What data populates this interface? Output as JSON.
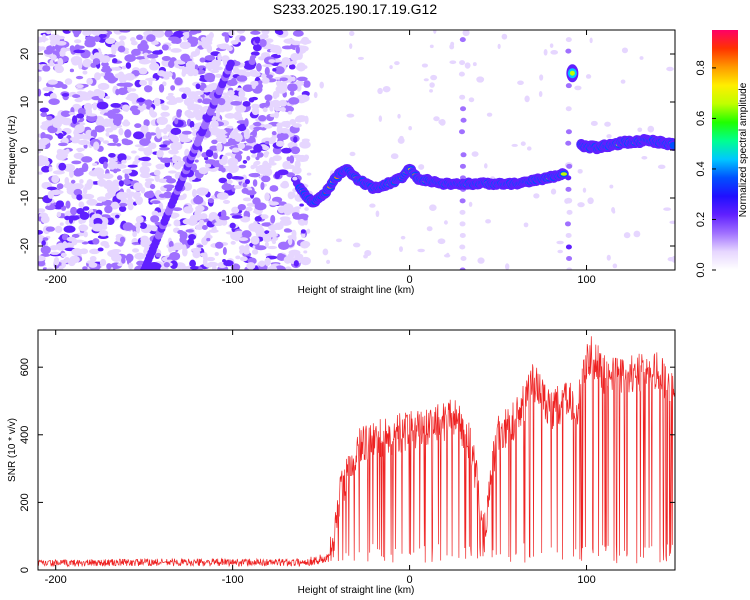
{
  "title": "S233.2025.190.17.19.G12",
  "chart_data": [
    {
      "type": "heatmap",
      "xlabel": "Height of straight line (km)",
      "ylabel": "Frequency (Hz)",
      "xlim": [
        -210,
        150
      ],
      "ylim": [
        -25,
        25
      ],
      "xticks": [
        -200,
        -100,
        0,
        100
      ],
      "yticks": [
        -20,
        -10,
        0,
        10,
        20
      ],
      "colorbar": {
        "label": "Normalized spectral amplitude",
        "range": [
          0.0,
          0.95
        ],
        "ticks": [
          0.0,
          0.2,
          0.4,
          0.6,
          0.8
        ],
        "colormap": [
          "#ffffff",
          "#e6d6ff",
          "#a070ff",
          "#6020ff",
          "#2010ff",
          "#0050ff",
          "#00c8ff",
          "#00ff90",
          "#20ff00",
          "#c0ff00",
          "#ffee00",
          "#ff9900",
          "#ff3300",
          "#ff0066"
        ]
      },
      "features": {
        "noise_region_x": [
          -210,
          -58
        ],
        "diagonal_streak": [
          [
            -150,
            -25
          ],
          [
            -101,
            18
          ]
        ],
        "main_trace": [
          [
            -62,
            -8
          ],
          [
            -55,
            -11
          ],
          [
            -48,
            -9
          ],
          [
            -40,
            -5
          ],
          [
            -35,
            -4
          ],
          [
            -30,
            -6
          ],
          [
            -20,
            -8
          ],
          [
            -12,
            -7
          ],
          [
            -5,
            -6
          ],
          [
            0,
            -4
          ],
          [
            5,
            -6
          ],
          [
            20,
            -7
          ],
          [
            40,
            -7
          ],
          [
            60,
            -7
          ],
          [
            75,
            -6
          ],
          [
            88,
            -5
          ]
        ],
        "upper_segment": [
          [
            97,
            1
          ],
          [
            105,
            0.5
          ],
          [
            120,
            1.5
          ],
          [
            135,
            2
          ],
          [
            150,
            1
          ]
        ],
        "isolated_blob": [
          92,
          16
        ],
        "vertical_stripes_x": [
          30,
          90
        ]
      }
    },
    {
      "type": "line",
      "xlabel": "Height of straight line (km)",
      "ylabel": "SNR (10 * v/v)",
      "xlim": [
        -210,
        150
      ],
      "ylim": [
        0,
        710
      ],
      "xticks": [
        -200,
        -100,
        0,
        100
      ],
      "yticks": [
        0,
        200,
        400,
        600
      ],
      "color": "#ee2222",
      "envelope": [
        [
          -210,
          22
        ],
        [
          -150,
          25
        ],
        [
          -100,
          25
        ],
        [
          -60,
          25
        ],
        [
          -45,
          40
        ],
        [
          -42,
          150
        ],
        [
          -38,
          250
        ],
        [
          -32,
          330
        ],
        [
          -28,
          380
        ],
        [
          -20,
          380
        ],
        [
          -10,
          400
        ],
        [
          0,
          410
        ],
        [
          10,
          420
        ],
        [
          20,
          440
        ],
        [
          25,
          460
        ],
        [
          30,
          420
        ],
        [
          35,
          360
        ],
        [
          40,
          200
        ],
        [
          43,
          100
        ],
        [
          46,
          280
        ],
        [
          50,
          400
        ],
        [
          55,
          420
        ],
        [
          60,
          450
        ],
        [
          65,
          500
        ],
        [
          70,
          560
        ],
        [
          75,
          520
        ],
        [
          80,
          470
        ],
        [
          85,
          490
        ],
        [
          90,
          500
        ],
        [
          95,
          480
        ],
        [
          98,
          580
        ],
        [
          102,
          640
        ],
        [
          106,
          610
        ],
        [
          110,
          580
        ],
        [
          120,
          575
        ],
        [
          130,
          580
        ],
        [
          140,
          590
        ],
        [
          150,
          520
        ]
      ]
    }
  ]
}
